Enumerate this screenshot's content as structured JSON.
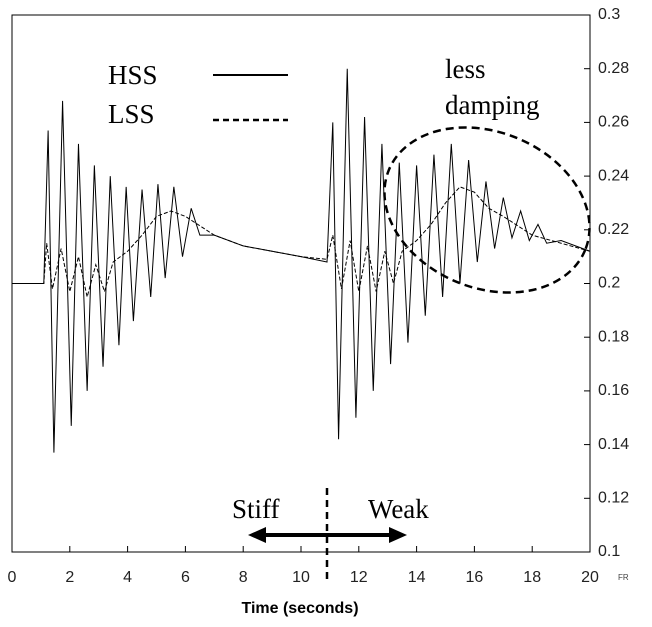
{
  "chart_data": {
    "type": "line",
    "xlabel": "Time (seconds)",
    "corner_label": "FR",
    "annotations": {
      "note_line1": "less",
      "note_line2": "damping",
      "left": "Stiff",
      "right": "Weak"
    },
    "xlim": [
      0,
      20
    ],
    "xticks": [
      0,
      2,
      4,
      6,
      8,
      10,
      12,
      14,
      16,
      18,
      20
    ],
    "ylim": [
      0.1,
      0.3
    ],
    "yticks": [
      0.1,
      0.12,
      0.14,
      0.16,
      0.18,
      0.2,
      0.22,
      0.24,
      0.26,
      0.28,
      0.3
    ],
    "series": [
      {
        "name": "HSS",
        "color": "#000000",
        "dash": false,
        "x": [
          0,
          1.1,
          1.25,
          1.45,
          1.75,
          2.05,
          2.3,
          2.6,
          2.85,
          3.15,
          3.4,
          3.7,
          3.95,
          4.2,
          4.5,
          4.8,
          5.05,
          5.3,
          5.6,
          5.9,
          6.2,
          6.5,
          7,
          8,
          9,
          10,
          10.9,
          11.1,
          11.3,
          11.6,
          11.9,
          12.2,
          12.5,
          12.8,
          13.1,
          13.4,
          13.7,
          14.0,
          14.3,
          14.6,
          14.9,
          15.2,
          15.5,
          15.8,
          16.1,
          16.4,
          16.7,
          17.0,
          17.3,
          17.6,
          17.9,
          18.2,
          18.5,
          19,
          20
        ],
        "values": [
          0.2,
          0.2,
          0.257,
          0.137,
          0.268,
          0.147,
          0.252,
          0.16,
          0.244,
          0.169,
          0.24,
          0.177,
          0.236,
          0.186,
          0.235,
          0.195,
          0.237,
          0.202,
          0.236,
          0.21,
          0.228,
          0.218,
          0.218,
          0.214,
          0.212,
          0.21,
          0.208,
          0.26,
          0.142,
          0.28,
          0.15,
          0.262,
          0.16,
          0.252,
          0.17,
          0.245,
          0.178,
          0.244,
          0.188,
          0.248,
          0.195,
          0.252,
          0.2,
          0.246,
          0.208,
          0.238,
          0.213,
          0.232,
          0.217,
          0.227,
          0.216,
          0.222,
          0.215,
          0.216,
          0.212
        ]
      },
      {
        "name": "LSS",
        "color": "#000000",
        "dash": true,
        "x": [
          0,
          1.1,
          1.2,
          1.4,
          1.7,
          2.0,
          2.3,
          2.6,
          2.9,
          3.2,
          3.5,
          4.0,
          4.5,
          5,
          5.5,
          6,
          7,
          8,
          9,
          10,
          10.9,
          11.1,
          11.4,
          11.7,
          12.0,
          12.3,
          12.6,
          12.9,
          13.2,
          13.5,
          14,
          14.5,
          15,
          15.5,
          16,
          16.5,
          17,
          18,
          19,
          20
        ],
        "values": [
          0.2,
          0.2,
          0.215,
          0.198,
          0.213,
          0.197,
          0.21,
          0.195,
          0.207,
          0.197,
          0.208,
          0.212,
          0.218,
          0.225,
          0.227,
          0.225,
          0.218,
          0.214,
          0.212,
          0.21,
          0.209,
          0.218,
          0.198,
          0.216,
          0.197,
          0.214,
          0.197,
          0.212,
          0.2,
          0.212,
          0.216,
          0.222,
          0.23,
          0.236,
          0.234,
          0.228,
          0.225,
          0.218,
          0.215,
          0.212
        ]
      }
    ]
  }
}
